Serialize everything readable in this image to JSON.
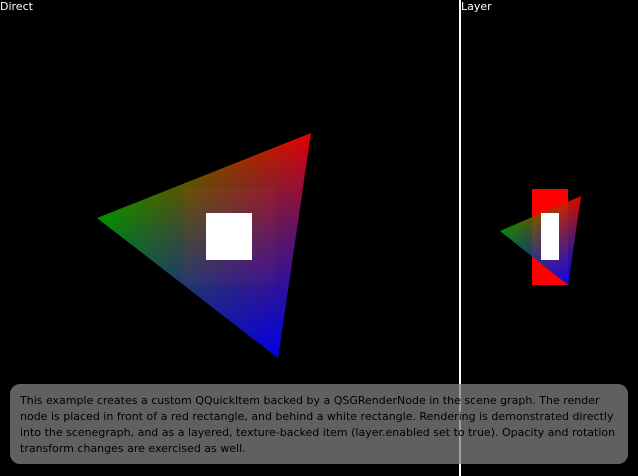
{
  "window": {
    "direct_label": "Direct",
    "layer_label": "Layer"
  },
  "scene": {
    "background": "#000000",
    "divider_color": "#ffffff",
    "rect_color": "#ff0000",
    "overlay_rect_color": "#ffffff",
    "triangle_colors": [
      "#00a000",
      "#ff0000",
      "#0000ff"
    ]
  },
  "info": {
    "text": "This example creates a custom QQuickItem backed by a QSGRenderNode in the scene graph. The render node is placed in front of a red rectangle, and behind a white rectangle. Rendering is demonstrated directly into the scenegraph, and as a layered, texture-backed item (layer.enabled set to true). Opacity and rotation transform changes are exercised as well."
  }
}
